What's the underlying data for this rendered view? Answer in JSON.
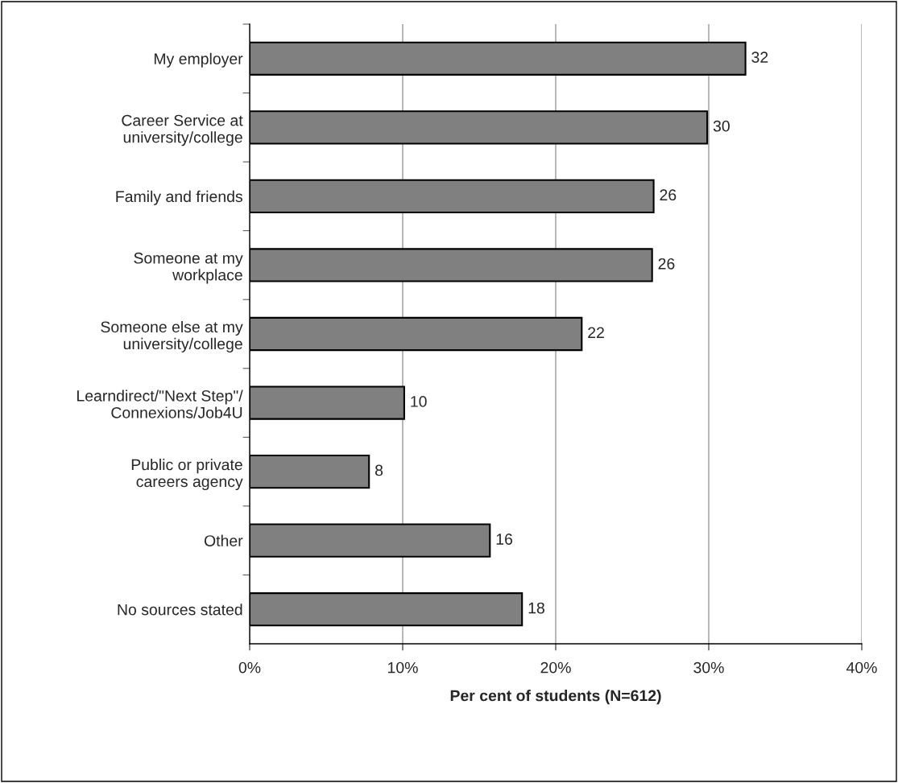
{
  "chart_data": {
    "type": "bar",
    "orientation": "horizontal",
    "xlabel": "Per cent of students (N=612)",
    "categories": [
      "My employer",
      "Career Service at\nuniversity/college",
      "Family and friends",
      "Someone at my\nworkplace",
      "Someone else at my\nuniversity/college",
      "Learndirect/\"Next Step\"/\nConnexions/Job4U",
      "Public or private\ncareers agency",
      "Other",
      "No sources stated"
    ],
    "values": [
      32.4,
      29.9,
      26.4,
      26.3,
      21.7,
      10.1,
      7.8,
      15.7,
      17.8
    ],
    "value_labels": [
      "32",
      "30",
      "26",
      "26",
      "22",
      "10",
      "8",
      "16",
      "18"
    ],
    "color": "#808080",
    "xlim": [
      0,
      40
    ],
    "xticks": [
      {
        "value": 0,
        "label": "0%"
      },
      {
        "value": 10,
        "label": "10%"
      },
      {
        "value": 20,
        "label": "20%"
      },
      {
        "value": 30,
        "label": "30%"
      },
      {
        "value": 40,
        "label": "40%"
      }
    ],
    "grid": "x",
    "legend": false
  }
}
